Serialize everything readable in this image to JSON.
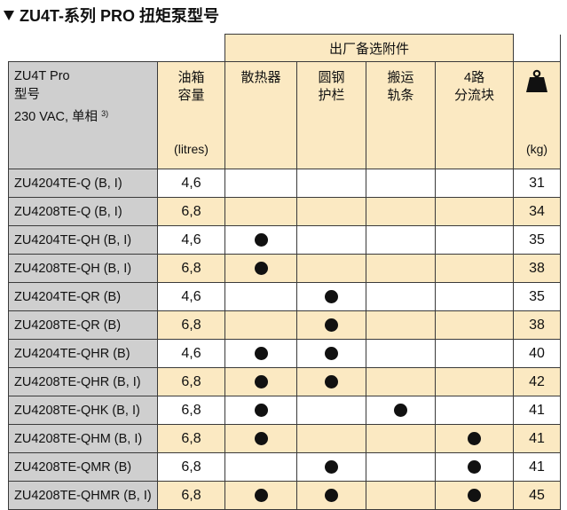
{
  "title": "ZU4T-系列 PRO 扭矩泵型号",
  "table": {
    "group_header": "出厂备选附件",
    "model_header": [
      "ZU4T Pro",
      "型号",
      "230 VAC, 单相"
    ],
    "model_footnote": "3)",
    "oil_header": [
      "油箱",
      "容量"
    ],
    "oil_unit": "(litres)",
    "accessory_headers": [
      [
        "散热器"
      ],
      [
        "圆钢",
        "护栏"
      ],
      [
        "搬运",
        "轨条"
      ],
      [
        "4路",
        "分流块"
      ]
    ],
    "weight_icon": "weight-icon",
    "weight_unit": "(kg)",
    "rows": [
      {
        "model": "ZU4204TE-Q (B, I)",
        "oil": "4,6",
        "marks": [
          false,
          false,
          false,
          false
        ],
        "weight": "31"
      },
      {
        "model": "ZU4208TE-Q (B, I)",
        "oil": "6,8",
        "marks": [
          false,
          false,
          false,
          false
        ],
        "weight": "34"
      },
      {
        "model": "ZU4204TE-QH (B, I)",
        "oil": "4,6",
        "marks": [
          true,
          false,
          false,
          false
        ],
        "weight": "35"
      },
      {
        "model": "ZU4208TE-QH (B, I)",
        "oil": "6,8",
        "marks": [
          true,
          false,
          false,
          false
        ],
        "weight": "38"
      },
      {
        "model": "ZU4204TE-QR (B)",
        "oil": "4,6",
        "marks": [
          false,
          true,
          false,
          false
        ],
        "weight": "35"
      },
      {
        "model": "ZU4208TE-QR (B)",
        "oil": "6,8",
        "marks": [
          false,
          true,
          false,
          false
        ],
        "weight": "38"
      },
      {
        "model": "ZU4204TE-QHR (B)",
        "oil": "4,6",
        "marks": [
          true,
          true,
          false,
          false
        ],
        "weight": "40"
      },
      {
        "model": "ZU4208TE-QHR (B, I)",
        "oil": "6,8",
        "marks": [
          true,
          true,
          false,
          false
        ],
        "weight": "42"
      },
      {
        "model": "ZU4208TE-QHK (B, I)",
        "oil": "6,8",
        "marks": [
          true,
          false,
          true,
          false
        ],
        "weight": "41"
      },
      {
        "model": "ZU4208TE-QHM (B, I)",
        "oil": "6,8",
        "marks": [
          true,
          false,
          false,
          true
        ],
        "weight": "41"
      },
      {
        "model": "ZU4208TE-QMR (B)",
        "oil": "6,8",
        "marks": [
          false,
          true,
          false,
          true
        ],
        "weight": "41"
      },
      {
        "model": "ZU4208TE-QHMR (B, I)",
        "oil": "6,8",
        "marks": [
          true,
          true,
          false,
          true
        ],
        "weight": "45"
      }
    ]
  },
  "colors": {
    "shade": "#fbe9c2",
    "model_shade": "#cfcfcf"
  }
}
